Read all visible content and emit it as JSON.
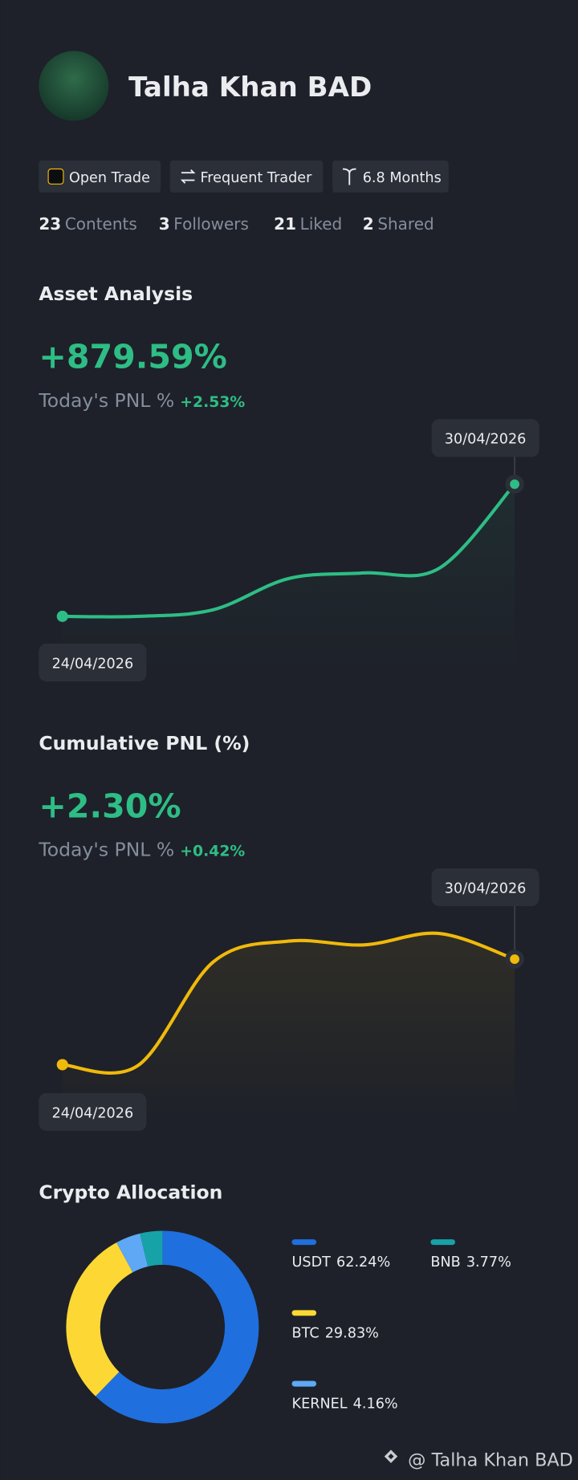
{
  "profile": {
    "name": "Talha Khan BAD",
    "tags": [
      "Open Trade",
      "Frequent Trader",
      "6.8 Months"
    ],
    "stats": [
      {
        "count": 23,
        "label": "Contents"
      },
      {
        "count": 3,
        "label": "Followers"
      },
      {
        "count": 21,
        "label": "Liked"
      },
      {
        "count": 2,
        "label": "Shared"
      }
    ]
  },
  "chart_data": [
    {
      "type": "line",
      "title": "Asset Analysis",
      "headline": "+879.59%",
      "today_label": "Today's PNL %",
      "today_value": "+2.53%",
      "categories": [
        "24/04/2026",
        null,
        null,
        null,
        null,
        null,
        "30/04/2026"
      ],
      "values": [
        0,
        0,
        7,
        40,
        46,
        51,
        140
      ],
      "color": "#2ebd85"
    },
    {
      "type": "line",
      "title": "Cumulative PNL (%)",
      "headline": "+2.30%",
      "today_label": "Today's PNL %",
      "today_value": "+0.42%",
      "categories": [
        "24/04/2026",
        null,
        null,
        null,
        null,
        null,
        "30/04/2026"
      ],
      "values": [
        0,
        -1,
        108,
        130,
        126,
        138,
        111
      ],
      "color": "#f0b90b"
    },
    {
      "type": "pie",
      "title": "Crypto Allocation",
      "categories": [
        "USDT",
        "BTC",
        "KERNEL",
        "BNB"
      ],
      "values": [
        62.24,
        29.83,
        4.16,
        3.77
      ],
      "value_labels": [
        "62.24%",
        "29.83%",
        "4.16%",
        "3.77%"
      ],
      "colors": [
        "#1f6fde",
        "#fdd835",
        "#5ea8f5",
        "#17a2a8"
      ]
    }
  ],
  "footer": {
    "watermark": "@ Talha Khan BAD"
  }
}
